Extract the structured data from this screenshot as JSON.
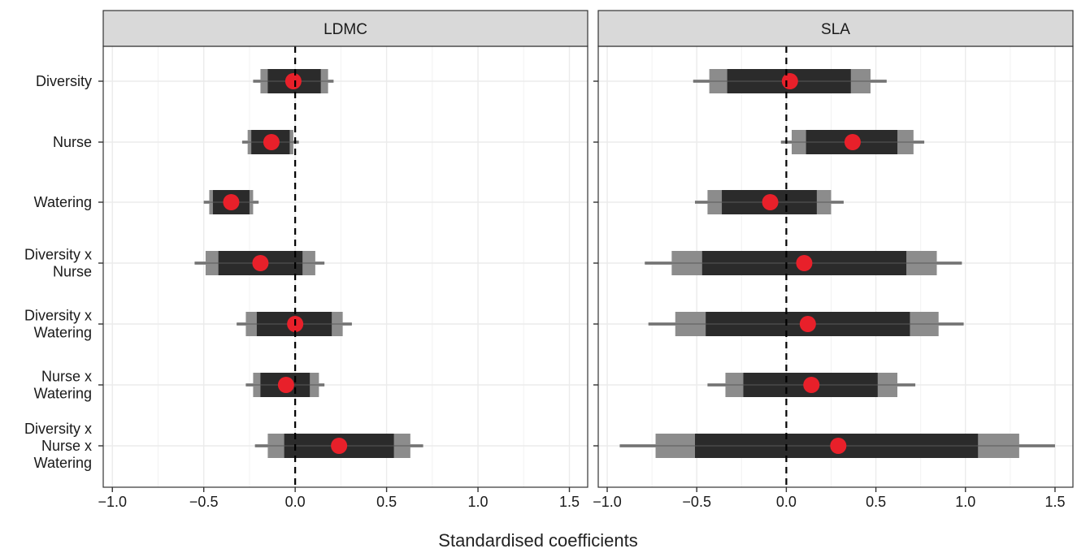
{
  "chart_data": {
    "type": "interval",
    "xlabel": "Standardised coefficients",
    "xlim": [
      -1.05,
      1.6
    ],
    "xticks": [
      -1.0,
      -0.5,
      0.0,
      0.5,
      1.0,
      1.5
    ],
    "xtick_labels": [
      "−1.0",
      "−0.5",
      "0.0",
      "0.5",
      "1.0",
      "1.5"
    ],
    "reference_line": 0.0,
    "grid": true,
    "colors": {
      "point": "#e8202a",
      "inner_interval": "#2b2b2b",
      "mid_interval": "#5a5a5a",
      "outer_interval": "#8c8c8c",
      "strip_background": "#d9d9d9",
      "gridline": "#ebebeb"
    },
    "terms": [
      [
        "Diversity"
      ],
      [
        "Nurse"
      ],
      [
        "Watering"
      ],
      [
        "Diversity x",
        "Nurse"
      ],
      [
        "Diversity x",
        "Watering"
      ],
      [
        "Nurse x",
        "Watering"
      ],
      [
        "Diversity x",
        "Nurse x",
        "Watering"
      ]
    ],
    "panels": [
      {
        "strip": "LDMC",
        "estimates": [
          {
            "mean": -0.01,
            "inner": [
              -0.15,
              0.14
            ],
            "mid": [
              -0.19,
              0.18
            ],
            "outer": [
              -0.23,
              0.21
            ]
          },
          {
            "mean": -0.13,
            "inner": [
              -0.24,
              -0.03
            ],
            "mid": [
              -0.26,
              -0.01
            ],
            "outer": [
              -0.29,
              0.02
            ]
          },
          {
            "mean": -0.35,
            "inner": [
              -0.45,
              -0.25
            ],
            "mid": [
              -0.47,
              -0.23
            ],
            "outer": [
              -0.5,
              -0.2
            ]
          },
          {
            "mean": -0.19,
            "inner": [
              -0.42,
              0.04
            ],
            "mid": [
              -0.49,
              0.11
            ],
            "outer": [
              -0.55,
              0.16
            ]
          },
          {
            "mean": 0.0,
            "inner": [
              -0.21,
              0.2
            ],
            "mid": [
              -0.27,
              0.26
            ],
            "outer": [
              -0.32,
              0.31
            ]
          },
          {
            "mean": -0.05,
            "inner": [
              -0.19,
              0.08
            ],
            "mid": [
              -0.23,
              0.13
            ],
            "outer": [
              -0.27,
              0.16
            ]
          },
          {
            "mean": 0.24,
            "inner": [
              -0.06,
              0.54
            ],
            "mid": [
              -0.15,
              0.63
            ],
            "outer": [
              -0.22,
              0.7
            ]
          }
        ]
      },
      {
        "strip": "SLA",
        "estimates": [
          {
            "mean": 0.02,
            "inner": [
              -0.33,
              0.36
            ],
            "mid": [
              -0.43,
              0.47
            ],
            "outer": [
              -0.52,
              0.56
            ]
          },
          {
            "mean": 0.37,
            "inner": [
              0.11,
              0.62
            ],
            "mid": [
              0.03,
              0.71
            ],
            "outer": [
              -0.03,
              0.77
            ]
          },
          {
            "mean": -0.09,
            "inner": [
              -0.36,
              0.17
            ],
            "mid": [
              -0.44,
              0.25
            ],
            "outer": [
              -0.51,
              0.32
            ]
          },
          {
            "mean": 0.1,
            "inner": [
              -0.47,
              0.67
            ],
            "mid": [
              -0.64,
              0.84
            ],
            "outer": [
              -0.79,
              0.98
            ]
          },
          {
            "mean": 0.12,
            "inner": [
              -0.45,
              0.69
            ],
            "mid": [
              -0.62,
              0.85
            ],
            "outer": [
              -0.77,
              0.99
            ]
          },
          {
            "mean": 0.14,
            "inner": [
              -0.24,
              0.51
            ],
            "mid": [
              -0.34,
              0.62
            ],
            "outer": [
              -0.44,
              0.72
            ]
          },
          {
            "mean": 0.29,
            "inner": [
              -0.51,
              1.07
            ],
            "mid": [
              -0.73,
              1.3
            ],
            "outer": [
              -0.93,
              1.5
            ]
          }
        ]
      }
    ]
  }
}
